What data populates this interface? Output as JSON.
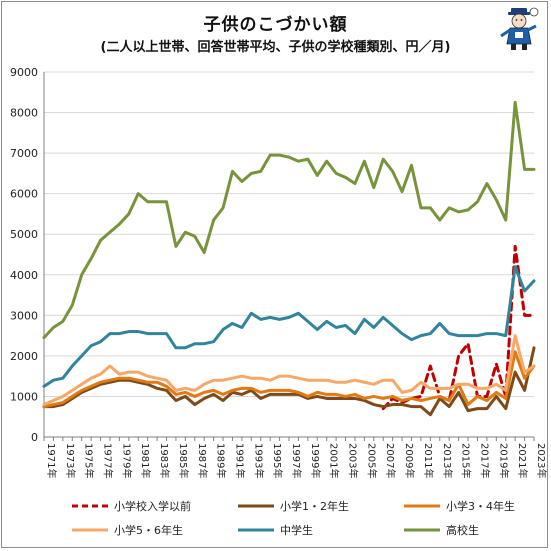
{
  "header": {
    "title": "子供のこづかい額",
    "subtitle": "(二人以上世帯、回答世帯平均、子供の学校種類別、円／月)"
  },
  "chart_data": {
    "type": "line",
    "title": "子供のこづかい額",
    "subtitle": "(二人以上世帯、回答世帯平均、子供の学校種類別、円／月)",
    "xlabel": "",
    "ylabel": "",
    "ylim": [
      0,
      9000
    ],
    "yticks": [
      0,
      1000,
      2000,
      3000,
      4000,
      5000,
      6000,
      7000,
      8000,
      9000
    ],
    "grid": true,
    "legend_position": "bottom",
    "x": [
      1971,
      1972,
      1973,
      1974,
      1975,
      1976,
      1977,
      1978,
      1979,
      1980,
      1981,
      1982,
      1983,
      1984,
      1985,
      1986,
      1987,
      1988,
      1989,
      1990,
      1991,
      1992,
      1993,
      1994,
      1995,
      1996,
      1997,
      1998,
      1999,
      2000,
      2001,
      2002,
      2003,
      2004,
      2005,
      2006,
      2007,
      2008,
      2009,
      2010,
      2011,
      2012,
      2013,
      2014,
      2015,
      2016,
      2017,
      2018,
      2019,
      2020,
      2021,
      2022,
      2023
    ],
    "x_tick_labels": [
      "1971年",
      "1973年",
      "1975年",
      "1977年",
      "1979年",
      "1981年",
      "1983年",
      "1985年",
      "1987年",
      "1989年",
      "1991年",
      "1993年",
      "1995年",
      "1997年",
      "1999年",
      "2001年",
      "2003年",
      "2005年",
      "2007年",
      "2009年",
      "2011年",
      "2013年",
      "2015年",
      "2017年",
      "2019年",
      "2021年",
      "2023年"
    ],
    "series": [
      {
        "name": "小学校入学以前",
        "color": "#c00000",
        "dashed": true,
        "values": [
          null,
          null,
          null,
          null,
          null,
          null,
          null,
          null,
          null,
          null,
          null,
          null,
          null,
          null,
          null,
          null,
          null,
          null,
          null,
          null,
          null,
          null,
          null,
          null,
          null,
          null,
          null,
          null,
          null,
          null,
          null,
          null,
          null,
          null,
          null,
          null,
          700,
          950,
          850,
          950,
          1000,
          1750,
          1000,
          900,
          2000,
          2300,
          1000,
          1000,
          1800,
          1000,
          4700,
          3000,
          3000
        ]
      },
      {
        "name": "小学1・2年生",
        "color": "#7f4a1a",
        "dashed": false,
        "values": [
          750,
          750,
          800,
          950,
          1100,
          1200,
          1300,
          1350,
          1400,
          1400,
          1350,
          1300,
          1200,
          1150,
          900,
          1000,
          800,
          950,
          1050,
          900,
          1100,
          1050,
          1150,
          950,
          1050,
          1050,
          1050,
          1050,
          950,
          1000,
          950,
          950,
          950,
          950,
          900,
          800,
          750,
          800,
          800,
          750,
          750,
          550,
          950,
          750,
          1100,
          650,
          700,
          700,
          1000,
          700,
          1600,
          1150,
          2200
        ]
      },
      {
        "name": "小学3・4年生",
        "color": "#e07b13",
        "dashed": false,
        "values": [
          750,
          800,
          850,
          1000,
          1150,
          1250,
          1350,
          1400,
          1450,
          1450,
          1400,
          1350,
          1350,
          1250,
          1050,
          1100,
          1000,
          1100,
          1150,
          1050,
          1150,
          1200,
          1200,
          1100,
          1150,
          1150,
          1150,
          1100,
          1000,
          1100,
          1050,
          1050,
          1000,
          1050,
          950,
          1000,
          950,
          1000,
          900,
          950,
          900,
          950,
          1000,
          900,
          1300,
          800,
          1000,
          900,
          1100,
          950,
          2100,
          1450,
          1750
        ]
      },
      {
        "name": "小学5・6年生",
        "color": "#f6a76a",
        "dashed": false,
        "values": [
          800,
          900,
          1000,
          1150,
          1300,
          1450,
          1550,
          1750,
          1550,
          1600,
          1600,
          1500,
          1450,
          1400,
          1150,
          1200,
          1150,
          1300,
          1400,
          1400,
          1450,
          1500,
          1450,
          1450,
          1400,
          1500,
          1500,
          1450,
          1400,
          1400,
          1400,
          1350,
          1350,
          1400,
          1350,
          1300,
          1400,
          1400,
          1100,
          1150,
          1350,
          1200,
          1200,
          1200,
          1300,
          1300,
          1200,
          1200,
          1300,
          1150,
          2500,
          1600,
          1750
        ]
      },
      {
        "name": "中学生",
        "color": "#31849b",
        "dashed": false,
        "values": [
          1250,
          1400,
          1450,
          1750,
          2000,
          2250,
          2350,
          2550,
          2550,
          2600,
          2600,
          2550,
          2550,
          2550,
          2200,
          2200,
          2300,
          2300,
          2350,
          2650,
          2800,
          2700,
          3050,
          2900,
          2950,
          2900,
          2950,
          3050,
          2850,
          2650,
          2850,
          2700,
          2750,
          2550,
          2900,
          2700,
          2950,
          2750,
          2550,
          2400,
          2500,
          2550,
          2800,
          2550,
          2500,
          2500,
          2500,
          2550,
          2550,
          2500,
          4200,
          3600,
          3850
        ]
      },
      {
        "name": "高校生",
        "color": "#77933c",
        "dashed": false,
        "values": [
          2450,
          2700,
          2850,
          3250,
          4000,
          4400,
          4850,
          5050,
          5250,
          5500,
          6000,
          5800,
          5800,
          5800,
          4700,
          5050,
          4950,
          4550,
          5350,
          5650,
          6550,
          6300,
          6500,
          6550,
          6950,
          6950,
          6900,
          6800,
          6850,
          6450,
          6800,
          6500,
          6400,
          6250,
          6800,
          6150,
          6850,
          6550,
          6050,
          6700,
          5650,
          5650,
          5350,
          5650,
          5550,
          5600,
          5800,
          6250,
          5850,
          5350,
          8250,
          6600,
          6600
        ]
      }
    ]
  },
  "mascot": {
    "icon": "mascot-character-icon"
  }
}
